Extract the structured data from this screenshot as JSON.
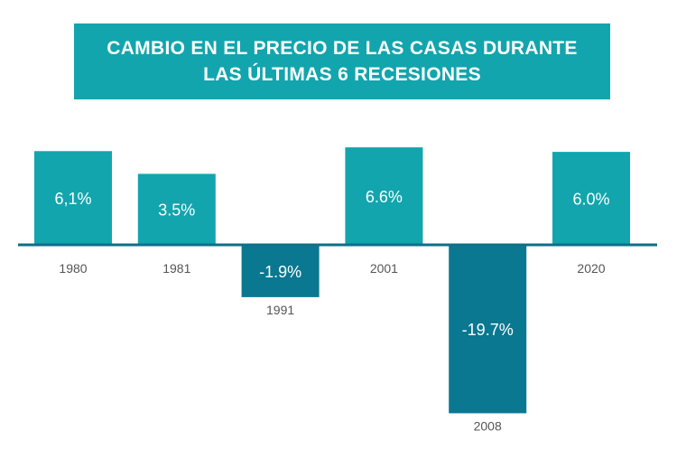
{
  "chart_data": {
    "type": "bar",
    "title": "CAMBIO EN EL PRECIO DE LAS CASAS DURANTE\nLAS ÚLTIMAS 6 RECESIONES",
    "categories": [
      "1980",
      "1981",
      "1991",
      "2001",
      "2008",
      "2020"
    ],
    "values": [
      6.1,
      3.5,
      -1.9,
      6.6,
      -19.7,
      6.0
    ],
    "data_labels": [
      "6,1%",
      "3.5%",
      "-1.9%",
      "6.6%",
      "-19.7%",
      "6.0%"
    ],
    "xlabel": "",
    "ylabel": "",
    "grid": false,
    "legend": "none",
    "colors": {
      "positive": "#12a5ad",
      "negative": "#0a7891",
      "baseline": "#0e6f86",
      "year_text": "#555555"
    }
  }
}
